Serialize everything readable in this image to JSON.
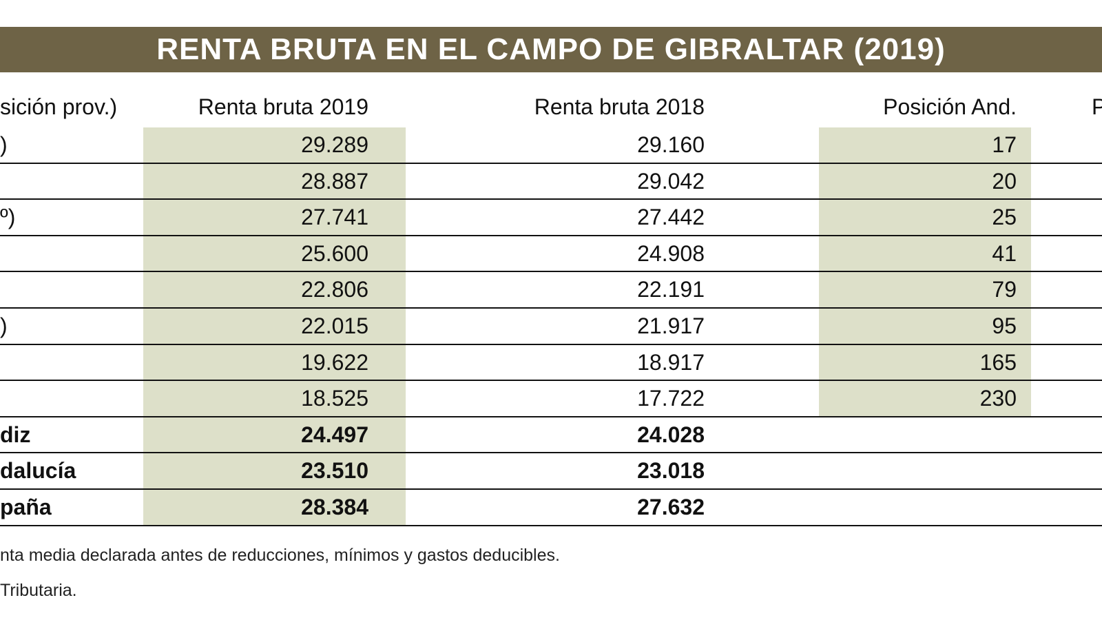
{
  "title": "RENTA BRUTA EN EL CAMPO DE GIBRALTAR (2019)",
  "table": {
    "headers": [
      "sición prov.)",
      "Renta bruta 2019",
      "Renta bruta 2018",
      "Posición And.",
      "P"
    ],
    "rows": [
      {
        "label": ")",
        "renta_2019": "29.289",
        "renta_2018": "29.160",
        "posicion_and": "17"
      },
      {
        "renta_2019": "28.887",
        "renta_2018": "29.042",
        "posicion_and": "20"
      },
      {
        "label": "º)",
        "renta_2019": "27.741",
        "renta_2018": "27.442",
        "posicion_and": "25"
      },
      {
        "renta_2019": "25.600",
        "renta_2018": "24.908",
        "posicion_and": "41"
      },
      {
        "renta_2019": "22.806",
        "renta_2018": "22.191",
        "posicion_and": "79"
      },
      {
        "label": ")",
        "renta_2019": "22.015",
        "renta_2018": "21.917",
        "posicion_and": "95"
      },
      {
        "renta_2019": "19.622",
        "renta_2018": "18.917",
        "posicion_and": "165"
      },
      {
        "renta_2019": "18.525",
        "renta_2018": "17.722",
        "posicion_and": "230"
      }
    ],
    "totals": [
      {
        "label": "diz",
        "renta_2019": "24.497",
        "renta_2018": "24.028"
      },
      {
        "label": "dalucía",
        "renta_2019": "23.510",
        "renta_2018": "23.018"
      },
      {
        "label": "paña",
        "renta_2019": "28.384",
        "renta_2018": "27.632"
      }
    ]
  },
  "notes": [
    "nta media declarada antes de reducciones, mínimos y gastos deducibles.",
    "Tributaria."
  ]
}
